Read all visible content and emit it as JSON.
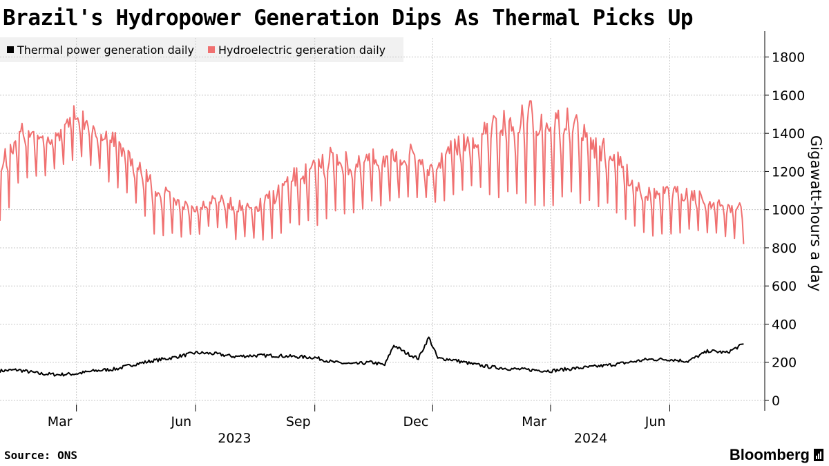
{
  "header": {
    "title": "Brazil's Hydropower Generation Dips As Thermal Picks Up"
  },
  "footer": {
    "source": "Source: ONS",
    "brand": "Bloomberg"
  },
  "chart_data": {
    "type": "line",
    "title": "Brazil's Hydropower Generation Dips As Thermal Picks Up",
    "ylabel": "Gigawatt-hours a day",
    "ylim": [
      0,
      1900
    ],
    "yticks": [
      0,
      200,
      400,
      600,
      800,
      1000,
      1200,
      1400,
      1600,
      1800
    ],
    "grid": true,
    "legend_position": "top-left",
    "x_start": "2023-01-01",
    "x_end": "2024-07-31",
    "x_months": [
      {
        "label": "Mar",
        "date": "2023-03-01"
      },
      {
        "label": "Jun",
        "date": "2023-06-01"
      },
      {
        "label": "Sep",
        "date": "2023-09-01"
      },
      {
        "label": "Dec",
        "date": "2023-12-01"
      },
      {
        "label": "Mar",
        "date": "2024-03-01"
      },
      {
        "label": "Jun",
        "date": "2024-06-01"
      }
    ],
    "x_years": [
      {
        "label": "2023",
        "date": "2023-07-01"
      },
      {
        "label": "2024",
        "date": "2024-04-01"
      }
    ],
    "series": [
      {
        "name": "Thermal power generation daily",
        "color": "#000000",
        "description": "weekly anchor levels, GWh/day",
        "dates": [
          "2023-01-01",
          "2023-01-15",
          "2023-02-01",
          "2023-02-15",
          "2023-03-01",
          "2023-03-15",
          "2023-04-01",
          "2023-04-15",
          "2023-05-01",
          "2023-05-15",
          "2023-06-01",
          "2023-06-15",
          "2023-07-01",
          "2023-07-15",
          "2023-08-01",
          "2023-08-15",
          "2023-09-01",
          "2023-09-15",
          "2023-10-01",
          "2023-10-15",
          "2023-10-25",
          "2023-11-01",
          "2023-11-10",
          "2023-11-20",
          "2023-11-28",
          "2023-12-05",
          "2023-12-15",
          "2024-01-01",
          "2024-01-15",
          "2024-02-01",
          "2024-02-15",
          "2024-03-01",
          "2024-03-15",
          "2024-04-01",
          "2024-04-15",
          "2024-05-01",
          "2024-05-15",
          "2024-06-01",
          "2024-06-15",
          "2024-07-01",
          "2024-07-15",
          "2024-07-28"
        ],
        "values": [
          155,
          160,
          140,
          135,
          140,
          155,
          165,
          190,
          210,
          225,
          250,
          245,
          230,
          235,
          235,
          230,
          225,
          200,
          190,
          200,
          185,
          290,
          250,
          220,
          330,
          220,
          215,
          190,
          175,
          165,
          160,
          155,
          165,
          175,
          185,
          200,
          215,
          215,
          205,
          260,
          250,
          295
        ]
      },
      {
        "name": "Hydroelectric generation daily",
        "color": "#f07070",
        "description": "weekly-cycle peak and trough levels, GWh/day",
        "dates": [
          "2023-01-01",
          "2023-01-15",
          "2023-02-01",
          "2023-02-15",
          "2023-03-01",
          "2023-03-15",
          "2023-04-01",
          "2023-04-15",
          "2023-05-01",
          "2023-05-15",
          "2023-06-01",
          "2023-06-15",
          "2023-07-01",
          "2023-07-15",
          "2023-08-01",
          "2023-08-15",
          "2023-09-01",
          "2023-09-15",
          "2023-10-01",
          "2023-10-15",
          "2023-11-01",
          "2023-11-15",
          "2023-12-01",
          "2023-12-15",
          "2024-01-01",
          "2024-01-15",
          "2024-02-01",
          "2024-02-15",
          "2024-03-01",
          "2024-03-15",
          "2024-04-01",
          "2024-04-15",
          "2024-05-01",
          "2024-05-15",
          "2024-06-01",
          "2024-06-15",
          "2024-07-01",
          "2024-07-15",
          "2024-07-28"
        ],
        "highs": [
          1300,
          1500,
          1450,
          1420,
          1600,
          1450,
          1450,
          1300,
          1200,
          1100,
          1050,
          1100,
          1080,
          1050,
          1150,
          1250,
          1300,
          1400,
          1300,
          1350,
          1350,
          1380,
          1250,
          1400,
          1450,
          1550,
          1600,
          1650,
          1600,
          1600,
          1450,
          1400,
          1250,
          1150,
          1150,
          1150,
          1100,
          1050,
          1070
        ],
        "lows": [
          950,
          1150,
          1200,
          1250,
          1300,
          1250,
          1150,
          1050,
          900,
          880,
          900,
          950,
          880,
          850,
          880,
          950,
          950,
          1000,
          1000,
          1050,
          1050,
          1100,
          1050,
          1100,
          1150,
          1100,
          1100,
          1050,
          1050,
          1100,
          1050,
          1050,
          950,
          900,
          900,
          920,
          900,
          880,
          850
        ]
      }
    ]
  }
}
